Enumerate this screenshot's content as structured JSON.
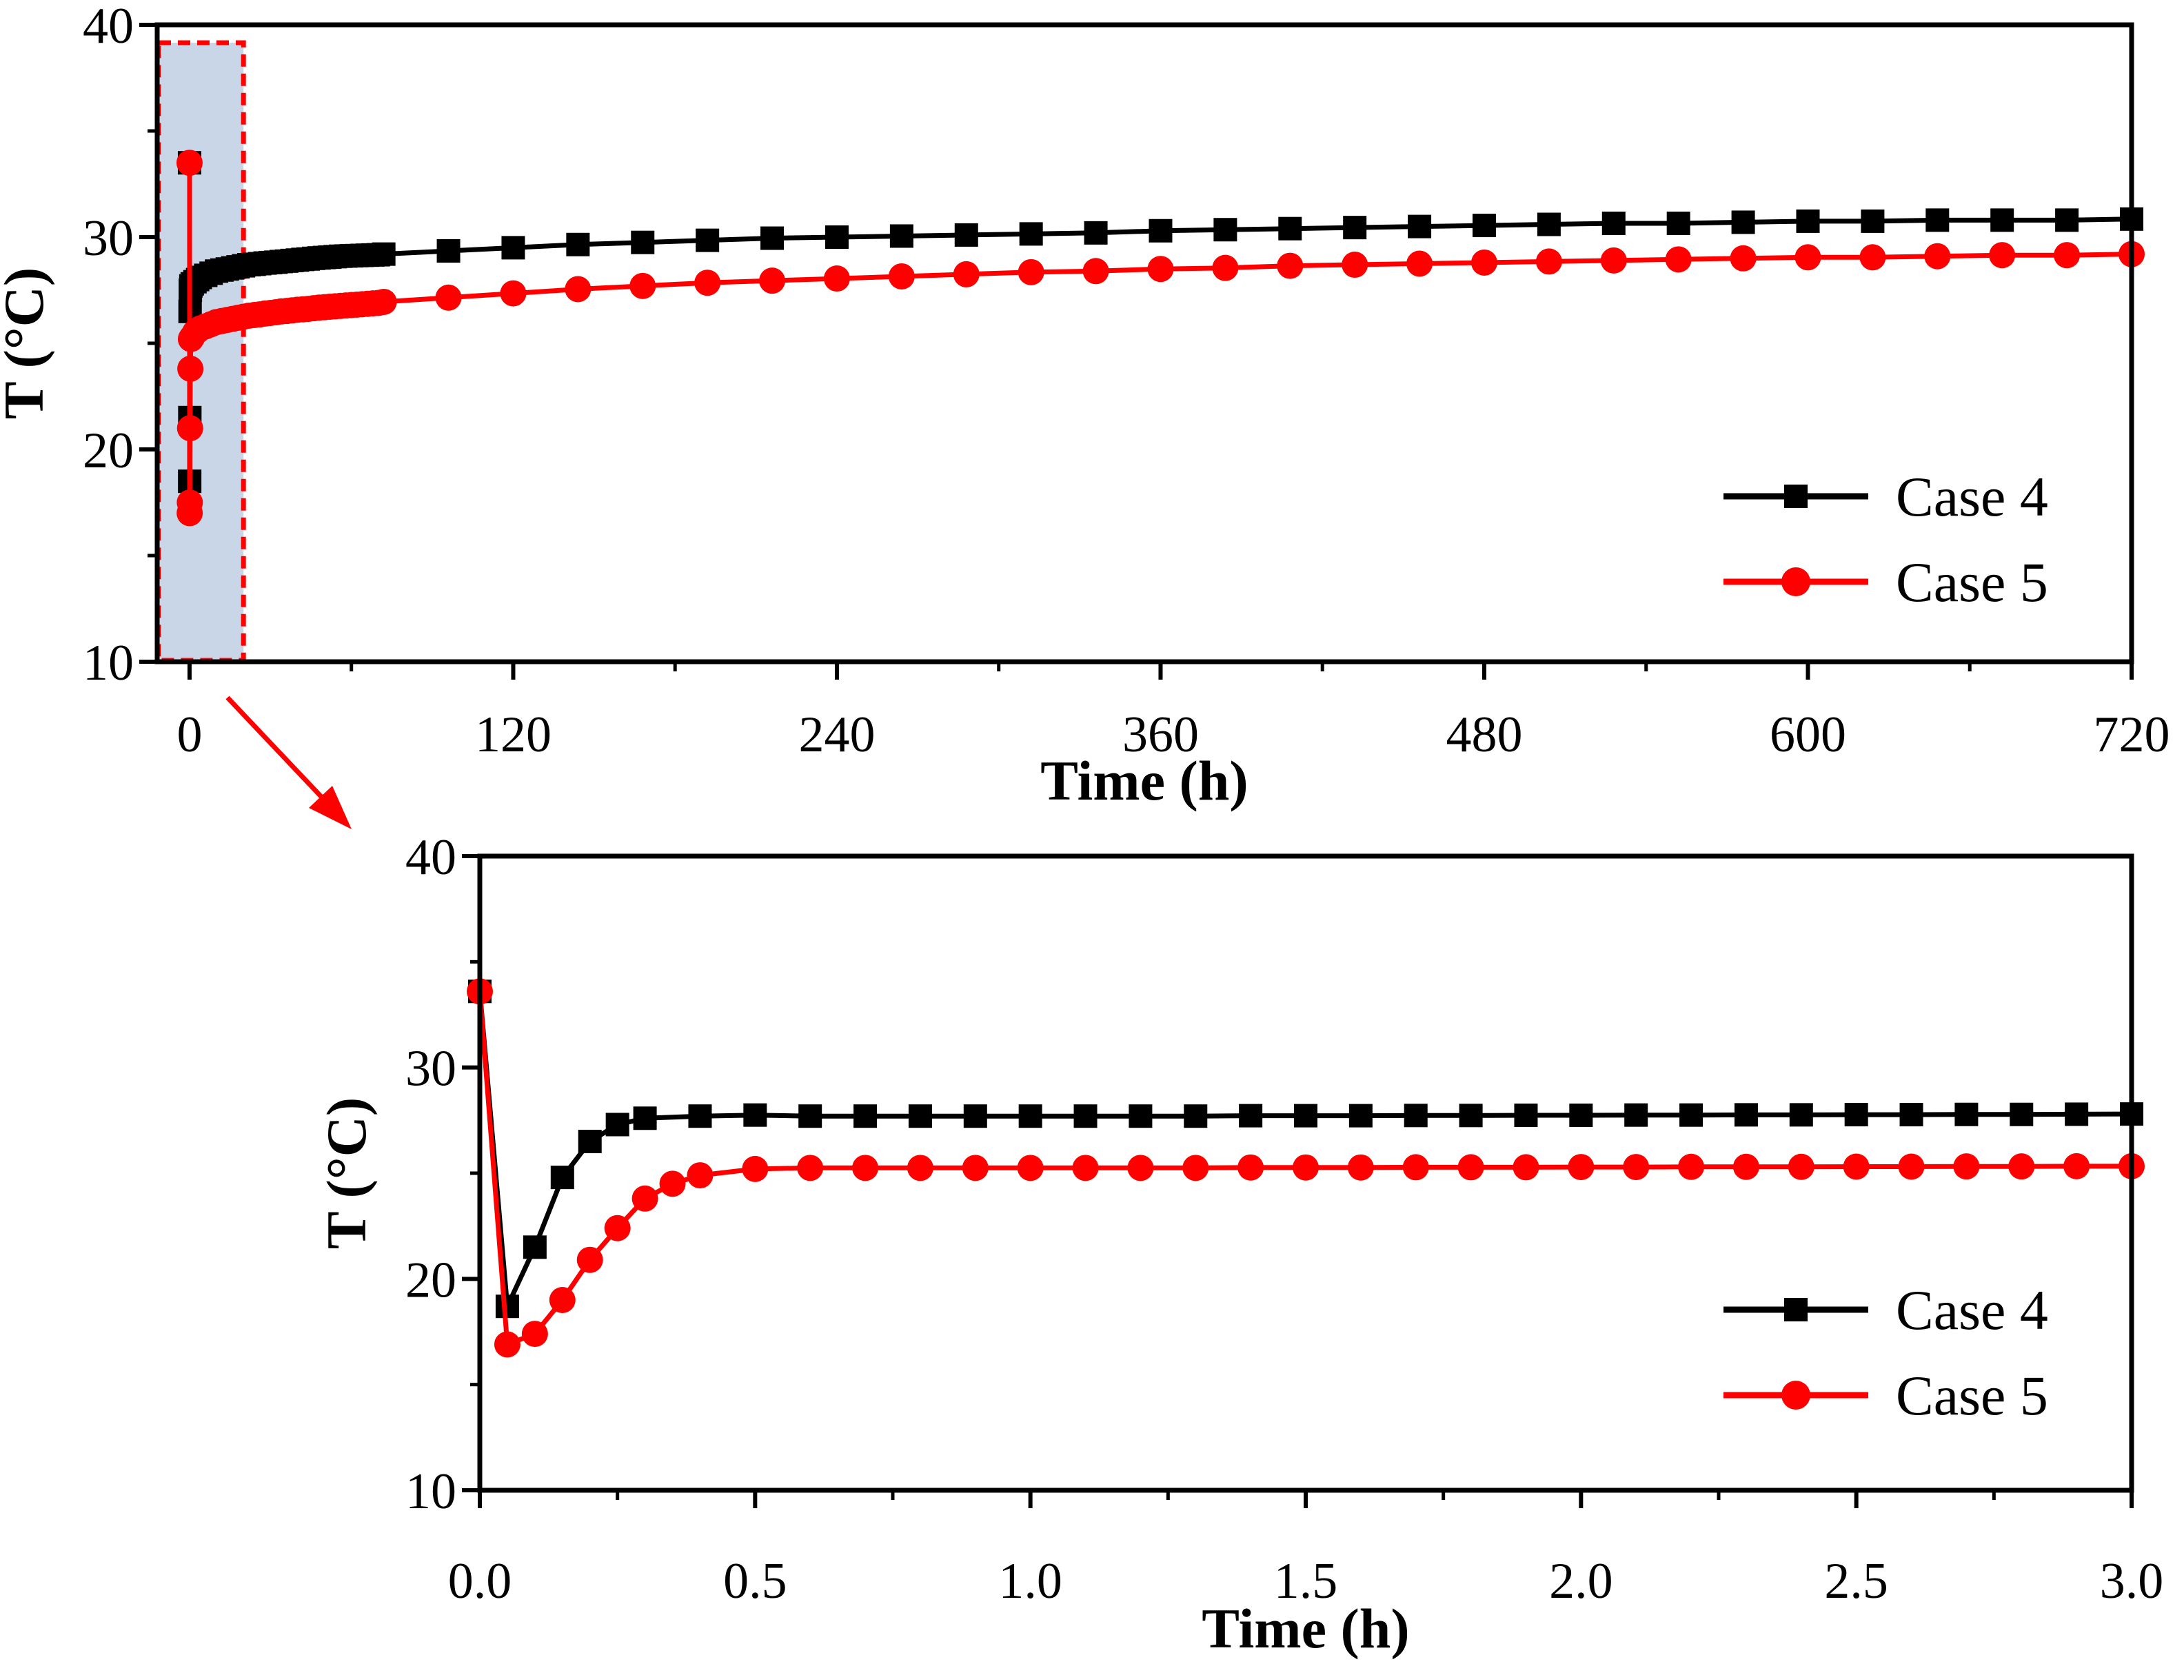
{
  "chart_data": [
    {
      "id": "overview",
      "type": "line",
      "xlabel": "Time (h)",
      "ylabel": "T (°C)",
      "xlim": [
        -12,
        720
      ],
      "ylim": [
        10,
        40
      ],
      "xticks": [
        0,
        120,
        240,
        360,
        480,
        600,
        720
      ],
      "yticks": [
        10,
        20,
        30,
        40
      ],
      "grid": false,
      "legend_position": "bottom-right",
      "highlight": {
        "x_range": [
          -12,
          20
        ],
        "y_range": [
          10,
          40
        ],
        "style": "red dashed box with light blue fill"
      },
      "series": [
        {
          "name": "Case 4",
          "color": "#000000",
          "marker": "square",
          "x": [
            0,
            0.05,
            0.1,
            0.2,
            0.3,
            0.5,
            1,
            2,
            3,
            4,
            6,
            8,
            10,
            12,
            14,
            16,
            18,
            20,
            22,
            24,
            26,
            28,
            30,
            32,
            34,
            36,
            38,
            40,
            42,
            44,
            46,
            48,
            50,
            52,
            54,
            56,
            58,
            60,
            62,
            64,
            66,
            68,
            70,
            72,
            96,
            120,
            144,
            168,
            192,
            216,
            240,
            264,
            288,
            312,
            336,
            360,
            384,
            408,
            432,
            456,
            480,
            504,
            528,
            552,
            576,
            600,
            624,
            648,
            672,
            696,
            720
          ],
          "y": [
            33.5,
            18.5,
            21.5,
            26.5,
            27.5,
            27.7,
            27.8,
            27.9,
            28.0,
            28.1,
            28.2,
            28.3,
            28.4,
            28.45,
            28.5,
            28.55,
            28.6,
            28.65,
            28.7,
            28.72,
            28.75,
            28.78,
            28.8,
            28.82,
            28.85,
            28.87,
            28.9,
            28.92,
            28.95,
            28.97,
            29.0,
            29.02,
            29.04,
            29.06,
            29.08,
            29.1,
            29.11,
            29.12,
            29.13,
            29.14,
            29.15,
            29.16,
            29.17,
            29.2,
            29.35,
            29.5,
            29.65,
            29.75,
            29.85,
            29.95,
            30.0,
            30.05,
            30.1,
            30.15,
            30.2,
            30.3,
            30.35,
            30.4,
            30.45,
            30.5,
            30.55,
            30.6,
            30.65,
            30.65,
            30.7,
            30.75,
            30.75,
            30.8,
            30.8,
            30.8,
            30.85
          ]
        },
        {
          "name": "Case 5",
          "color": "#ff0000",
          "marker": "circle",
          "x": [
            0,
            0.05,
            0.1,
            0.2,
            0.3,
            0.5,
            1,
            2,
            3,
            4,
            6,
            8,
            10,
            12,
            14,
            16,
            18,
            20,
            22,
            24,
            26,
            28,
            30,
            32,
            34,
            36,
            38,
            40,
            42,
            44,
            46,
            48,
            50,
            52,
            54,
            56,
            58,
            60,
            62,
            64,
            66,
            68,
            70,
            72,
            96,
            120,
            144,
            168,
            192,
            216,
            240,
            264,
            288,
            312,
            336,
            360,
            384,
            408,
            432,
            456,
            480,
            504,
            528,
            552,
            576,
            600,
            624,
            648,
            672,
            696,
            720
          ],
          "y": [
            33.5,
            17.0,
            17.5,
            21.0,
            23.8,
            25.2,
            25.3,
            25.5,
            25.6,
            25.7,
            25.8,
            25.9,
            26.0,
            26.05,
            26.1,
            26.15,
            26.2,
            26.25,
            26.3,
            26.33,
            26.36,
            26.4,
            26.43,
            26.46,
            26.5,
            26.52,
            26.55,
            26.58,
            26.6,
            26.62,
            26.65,
            26.68,
            26.7,
            26.72,
            26.74,
            26.76,
            26.78,
            26.8,
            26.82,
            26.84,
            26.86,
            26.88,
            26.9,
            26.95,
            27.15,
            27.35,
            27.55,
            27.7,
            27.85,
            27.95,
            28.05,
            28.15,
            28.25,
            28.35,
            28.4,
            28.5,
            28.55,
            28.65,
            28.7,
            28.75,
            28.8,
            28.85,
            28.9,
            28.95,
            29.0,
            29.05,
            29.05,
            29.1,
            29.15,
            29.15,
            29.2
          ]
        }
      ]
    },
    {
      "id": "zoom",
      "type": "line",
      "xlabel": "Time (h)",
      "ylabel": "T (°C)",
      "xlim": [
        0,
        3.0
      ],
      "ylim": [
        10,
        40
      ],
      "xticks": [
        "0.0",
        "0.5",
        "1.0",
        "1.5",
        "2.0",
        "2.5",
        "3.0"
      ],
      "yticks": [
        10,
        20,
        30,
        40
      ],
      "grid": false,
      "legend_position": "bottom-right",
      "series": [
        {
          "name": "Case 4",
          "color": "#000000",
          "marker": "square",
          "x": [
            0,
            0.05,
            0.1,
            0.15,
            0.2,
            0.25,
            0.3,
            0.4,
            0.5,
            0.6,
            0.7,
            0.8,
            0.9,
            1.0,
            1.1,
            1.2,
            1.3,
            1.4,
            1.5,
            1.6,
            1.7,
            1.8,
            1.9,
            2.0,
            2.1,
            2.2,
            2.3,
            2.4,
            2.5,
            2.6,
            2.7,
            2.8,
            2.9,
            3.0
          ],
          "y": [
            33.6,
            18.7,
            21.5,
            24.8,
            26.5,
            27.3,
            27.6,
            27.7,
            27.75,
            27.7,
            27.7,
            27.7,
            27.7,
            27.7,
            27.7,
            27.7,
            27.7,
            27.72,
            27.72,
            27.72,
            27.73,
            27.73,
            27.74,
            27.74,
            27.75,
            27.75,
            27.76,
            27.76,
            27.77,
            27.77,
            27.78,
            27.78,
            27.79,
            27.8
          ]
        },
        {
          "name": "Case 5",
          "color": "#ff0000",
          "marker": "circle",
          "x": [
            0,
            0.05,
            0.1,
            0.15,
            0.2,
            0.25,
            0.3,
            0.35,
            0.4,
            0.5,
            0.6,
            0.7,
            0.8,
            0.9,
            1.0,
            1.1,
            1.2,
            1.3,
            1.4,
            1.5,
            1.6,
            1.7,
            1.8,
            1.9,
            2.0,
            2.1,
            2.2,
            2.3,
            2.4,
            2.5,
            2.6,
            2.7,
            2.8,
            2.9,
            3.0
          ],
          "y": [
            33.6,
            16.9,
            17.4,
            19.0,
            20.9,
            22.4,
            23.8,
            24.5,
            24.9,
            25.2,
            25.25,
            25.25,
            25.25,
            25.25,
            25.25,
            25.25,
            25.25,
            25.25,
            25.27,
            25.27,
            25.27,
            25.28,
            25.28,
            25.28,
            25.29,
            25.29,
            25.3,
            25.3,
            25.3,
            25.31,
            25.31,
            25.32,
            25.32,
            25.33,
            25.33
          ]
        }
      ]
    }
  ],
  "colors": {
    "case4": "#000000",
    "case5": "#ff0000",
    "highlight_stroke": "#ff0000",
    "highlight_fill": "#c9d6e8",
    "arrow": "#ff0000"
  }
}
